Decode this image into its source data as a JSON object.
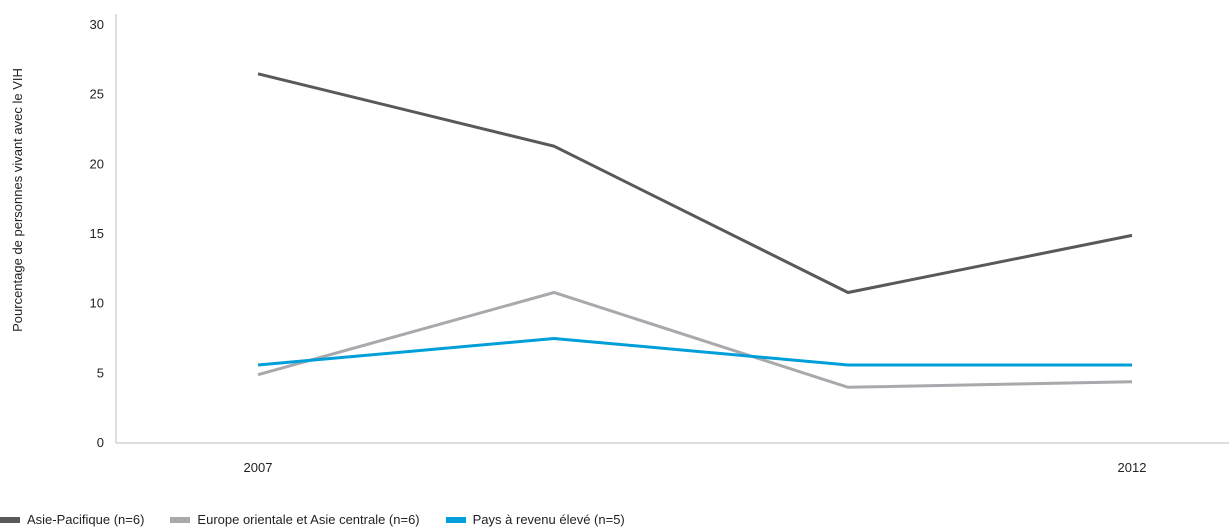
{
  "chart_data": {
    "type": "line",
    "ylabel": "Pourcentage de personnes vivant avec le VIH",
    "xlabel": "",
    "ylim": [
      0,
      30
    ],
    "yticks": [
      0,
      5,
      10,
      15,
      20,
      25,
      30
    ],
    "x": [
      0,
      1,
      2,
      3
    ],
    "x_tick_labels": [
      "2007",
      "",
      "",
      "2012"
    ],
    "series": [
      {
        "name": "Asie-Pacifique (n=6)",
        "color": "#58595b",
        "values": [
          26.5,
          21.3,
          10.8,
          14.9
        ]
      },
      {
        "name": "Europe orientale et Asie centrale (n=6)",
        "color": "#a7a9ac",
        "values": [
          4.9,
          10.8,
          4.0,
          4.4
        ]
      },
      {
        "name": "Pays à revenu élevé (n=5)",
        "color": "#009fda",
        "values": [
          5.6,
          7.5,
          5.6,
          5.6
        ]
      }
    ],
    "grid": false,
    "legend_position": "bottom-left"
  }
}
